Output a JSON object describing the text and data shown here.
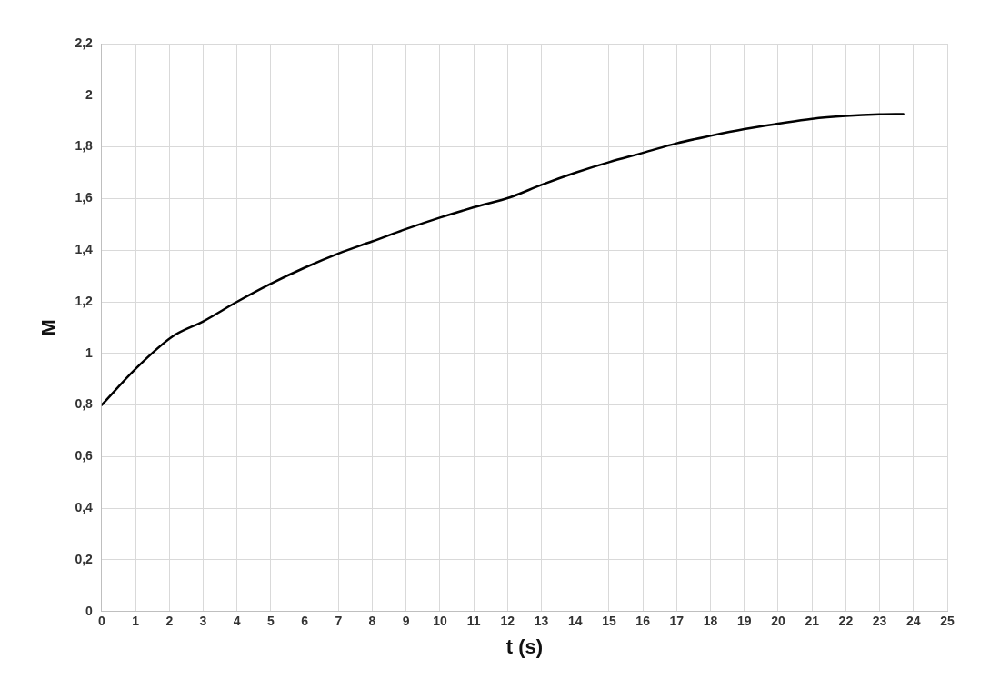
{
  "chart_data": {
    "type": "line",
    "xlabel": "t (s)",
    "ylabel": "M",
    "series": [
      {
        "color": "#000000",
        "x": [
          0,
          1,
          2.1,
          3,
          4,
          5,
          6,
          7,
          8,
          9,
          10,
          11,
          12.1,
          13,
          14,
          15,
          16,
          17,
          18,
          19,
          20,
          21,
          22,
          23,
          23.7
        ],
        "values": [
          0.8,
          0.94,
          1.066,
          1.124,
          1.2,
          1.27,
          1.332,
          1.387,
          1.434,
          1.482,
          1.526,
          1.566,
          1.606,
          1.653,
          1.7,
          1.741,
          1.777,
          1.814,
          1.843,
          1.869,
          1.89,
          1.909,
          1.92,
          1.926,
          1.927
        ]
      }
    ],
    "xlim": [
      0,
      25
    ],
    "xticks": [
      0,
      1,
      2,
      3,
      4,
      5,
      6,
      7,
      8,
      9,
      10,
      11,
      12,
      13,
      14,
      15,
      16,
      17,
      18,
      19,
      20,
      21,
      22,
      23,
      24,
      25
    ],
    "ylim": [
      0,
      2.2
    ],
    "yticks": [
      0,
      {
        "value": 0.2,
        "label": "0,2"
      },
      {
        "value": 0.4,
        "label": "0,4"
      },
      {
        "value": 0.6,
        "label": "0,6"
      },
      {
        "value": 0.8,
        "label": "0,8"
      },
      1,
      {
        "value": 1.2,
        "label": "1,2"
      },
      {
        "value": 1.4,
        "label": "1,4"
      },
      {
        "value": 1.6,
        "label": "1,6"
      },
      {
        "value": 1.8,
        "label": "1,8"
      },
      2,
      {
        "value": 2.2,
        "label": "2,2"
      }
    ],
    "grid": true,
    "legend": false,
    "marker": "none",
    "line_style": "solid"
  }
}
